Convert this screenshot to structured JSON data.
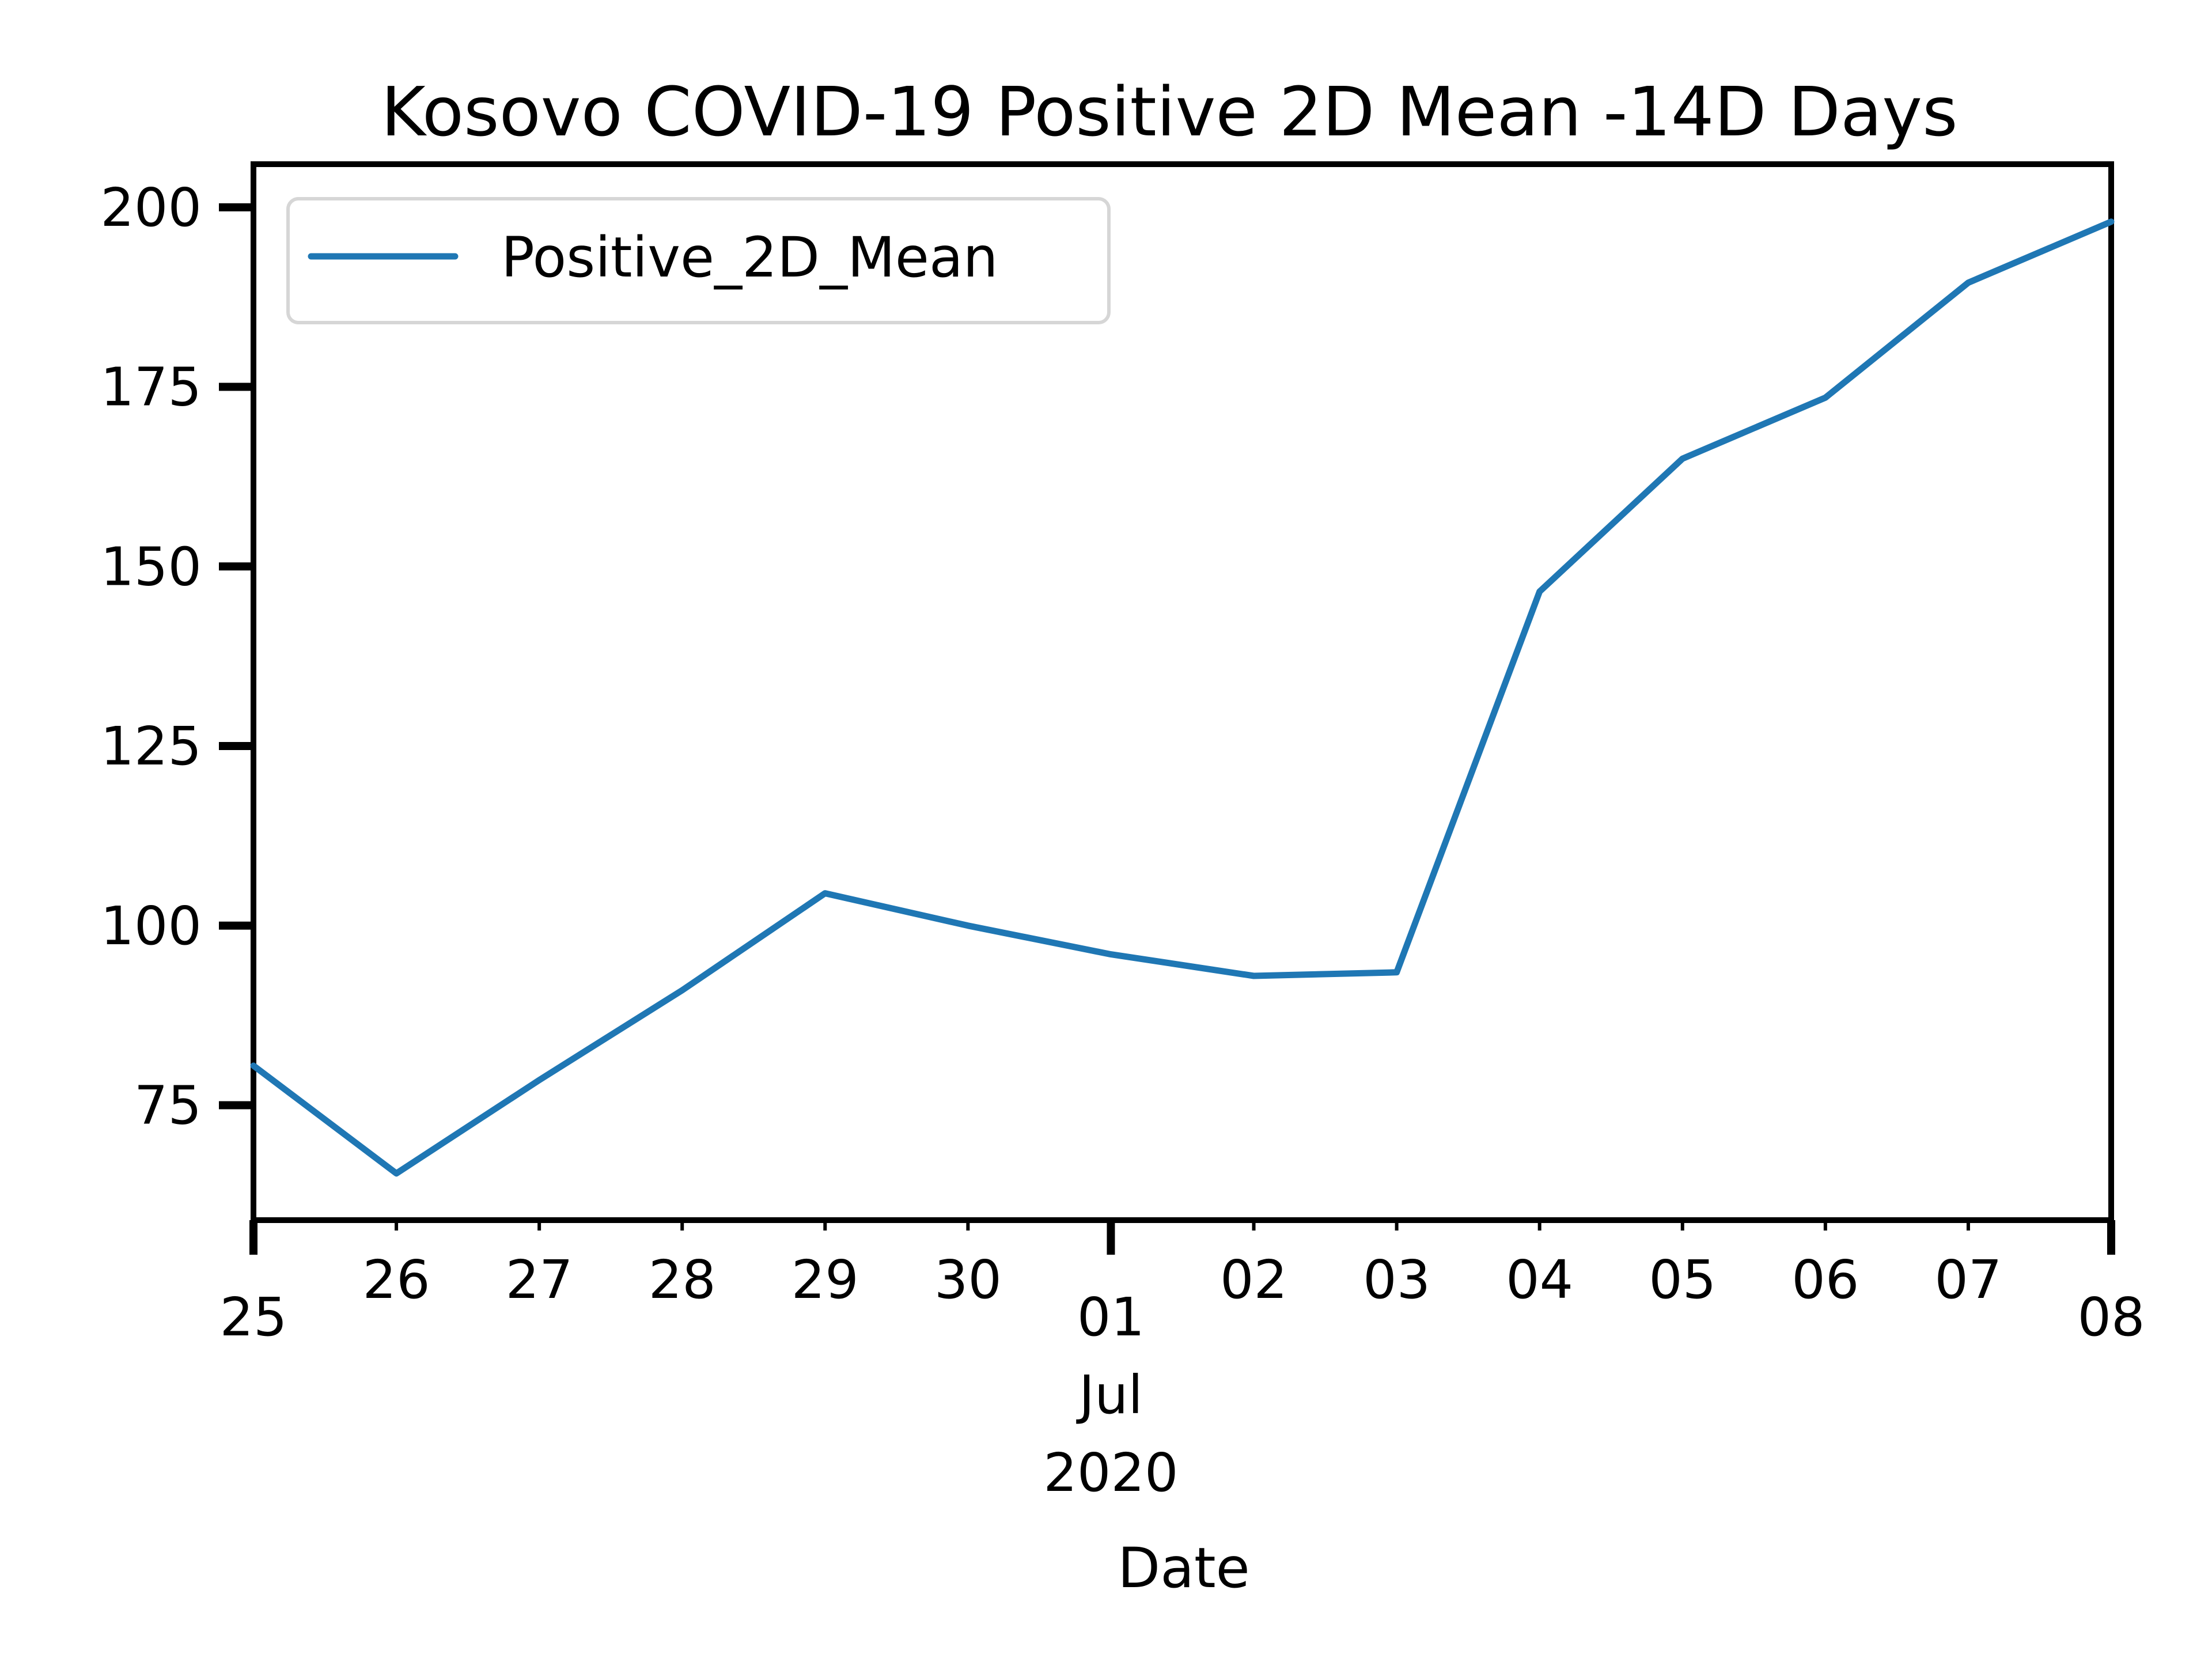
{
  "chart_data": {
    "type": "line",
    "title": "Kosovo COVID-19 Positive 2D Mean -14D Days",
    "xlabel": "Date",
    "ylabel": "",
    "x_tick_labels": [
      "25",
      "26",
      "27",
      "28",
      "29",
      "30",
      "01",
      "02",
      "03",
      "04",
      "05",
      "06",
      "07",
      "08"
    ],
    "x_major_tick_index": 6,
    "x_secondary_labels": [
      "Jul",
      "2020"
    ],
    "x_range": [
      "2020-06-25",
      "2020-07-08"
    ],
    "ylim": [
      59,
      206
    ],
    "y_ticks": [
      75,
      100,
      125,
      150,
      175,
      200
    ],
    "grid": false,
    "legend_position": "top-left",
    "series": [
      {
        "name": "Positive_2D_Mean",
        "color": "#1f77b4",
        "x": [
          "2020-06-25",
          "2020-06-26",
          "2020-06-27",
          "2020-06-28",
          "2020-06-29",
          "2020-06-30",
          "2020-07-01",
          "2020-07-02",
          "2020-07-03",
          "2020-07-04",
          "2020-07-05",
          "2020-07-06",
          "2020-07-07",
          "2020-07-08"
        ],
        "values": [
          80.5,
          65.5,
          78.5,
          91.0,
          104.5,
          100.0,
          96.0,
          93.0,
          93.5,
          146.5,
          165.0,
          173.5,
          189.5,
          198.0
        ]
      }
    ]
  }
}
